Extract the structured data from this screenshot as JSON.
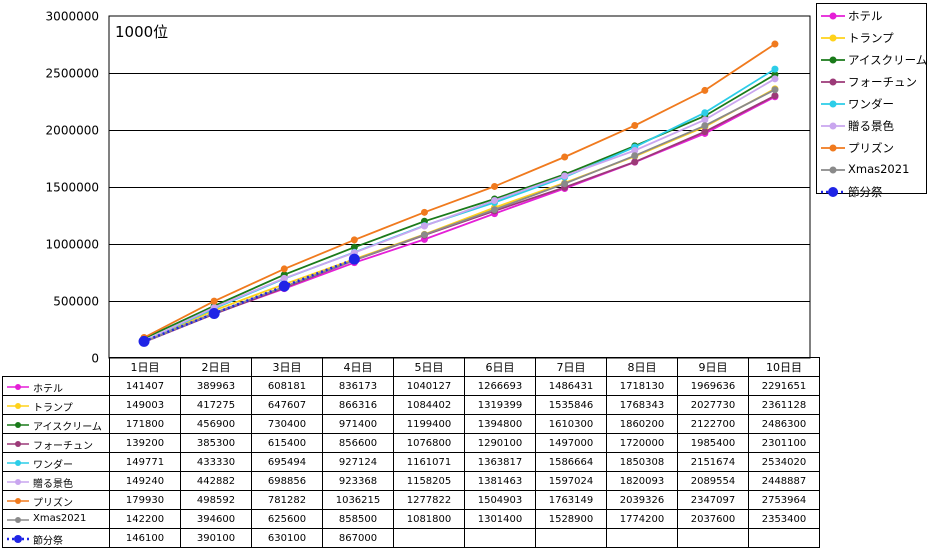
{
  "chart_data": {
    "type": "line",
    "annotation": "1000位",
    "yticks": [
      "0",
      "500000",
      "1000000",
      "1500000",
      "2000000",
      "2500000",
      "3000000"
    ],
    "ylim": [
      0,
      3000000
    ],
    "grid": true,
    "legend_position": "right",
    "categories": [
      "1日目",
      "2日目",
      "3日目",
      "4日目",
      "5日目",
      "6日目",
      "7日目",
      "8日目",
      "9日目",
      "10日目"
    ],
    "series": [
      {
        "name": "ホテル",
        "color": "#e51fd7",
        "line": "solid",
        "values": [
          141407,
          389963,
          608181,
          836173,
          1040127,
          1266693,
          1486431,
          1718130,
          1969636,
          2291651
        ]
      },
      {
        "name": "トランプ",
        "color": "#ffd21a",
        "line": "solid",
        "values": [
          149003,
          417275,
          647607,
          866316,
          1084402,
          1319399,
          1535846,
          1768343,
          2027730,
          2361128
        ]
      },
      {
        "name": "アイスクリーム",
        "color": "#1a7a1a",
        "line": "solid",
        "values": [
          171800,
          456900,
          730400,
          971400,
          1199400,
          1394800,
          1610300,
          1860200,
          2122700,
          2486300
        ]
      },
      {
        "name": "フォーチュン",
        "color": "#9c3a78",
        "line": "solid",
        "values": [
          139200,
          385300,
          615400,
          856600,
          1076800,
          1290100,
          1497000,
          1720000,
          1985400,
          2301100
        ]
      },
      {
        "name": "ワンダー",
        "color": "#2ccde8",
        "line": "solid",
        "values": [
          149771,
          433330,
          695494,
          927124,
          1161071,
          1363817,
          1586664,
          1850308,
          2151674,
          2534020
        ]
      },
      {
        "name": "贈る景色",
        "color": "#c9a6ef",
        "line": "solid",
        "values": [
          149240,
          442882,
          698856,
          923368,
          1158205,
          1381463,
          1597024,
          1820093,
          2089554,
          2448887
        ]
      },
      {
        "name": "プリズン",
        "color": "#f07a1e",
        "line": "solid",
        "values": [
          179930,
          498592,
          781282,
          1036215,
          1277822,
          1504903,
          1763149,
          2039326,
          2347097,
          2753964
        ]
      },
      {
        "name": "Xmas2021",
        "color": "#8a8a8a",
        "line": "solid",
        "values": [
          142200,
          394600,
          625600,
          858500,
          1081800,
          1301400,
          1528900,
          1774200,
          2037600,
          2353400
        ]
      },
      {
        "name": "節分祭",
        "color": "#1f24e6",
        "line": "dotted",
        "values": [
          146100,
          390100,
          630100,
          867000,
          null,
          null,
          null,
          null,
          null,
          null
        ]
      }
    ]
  }
}
